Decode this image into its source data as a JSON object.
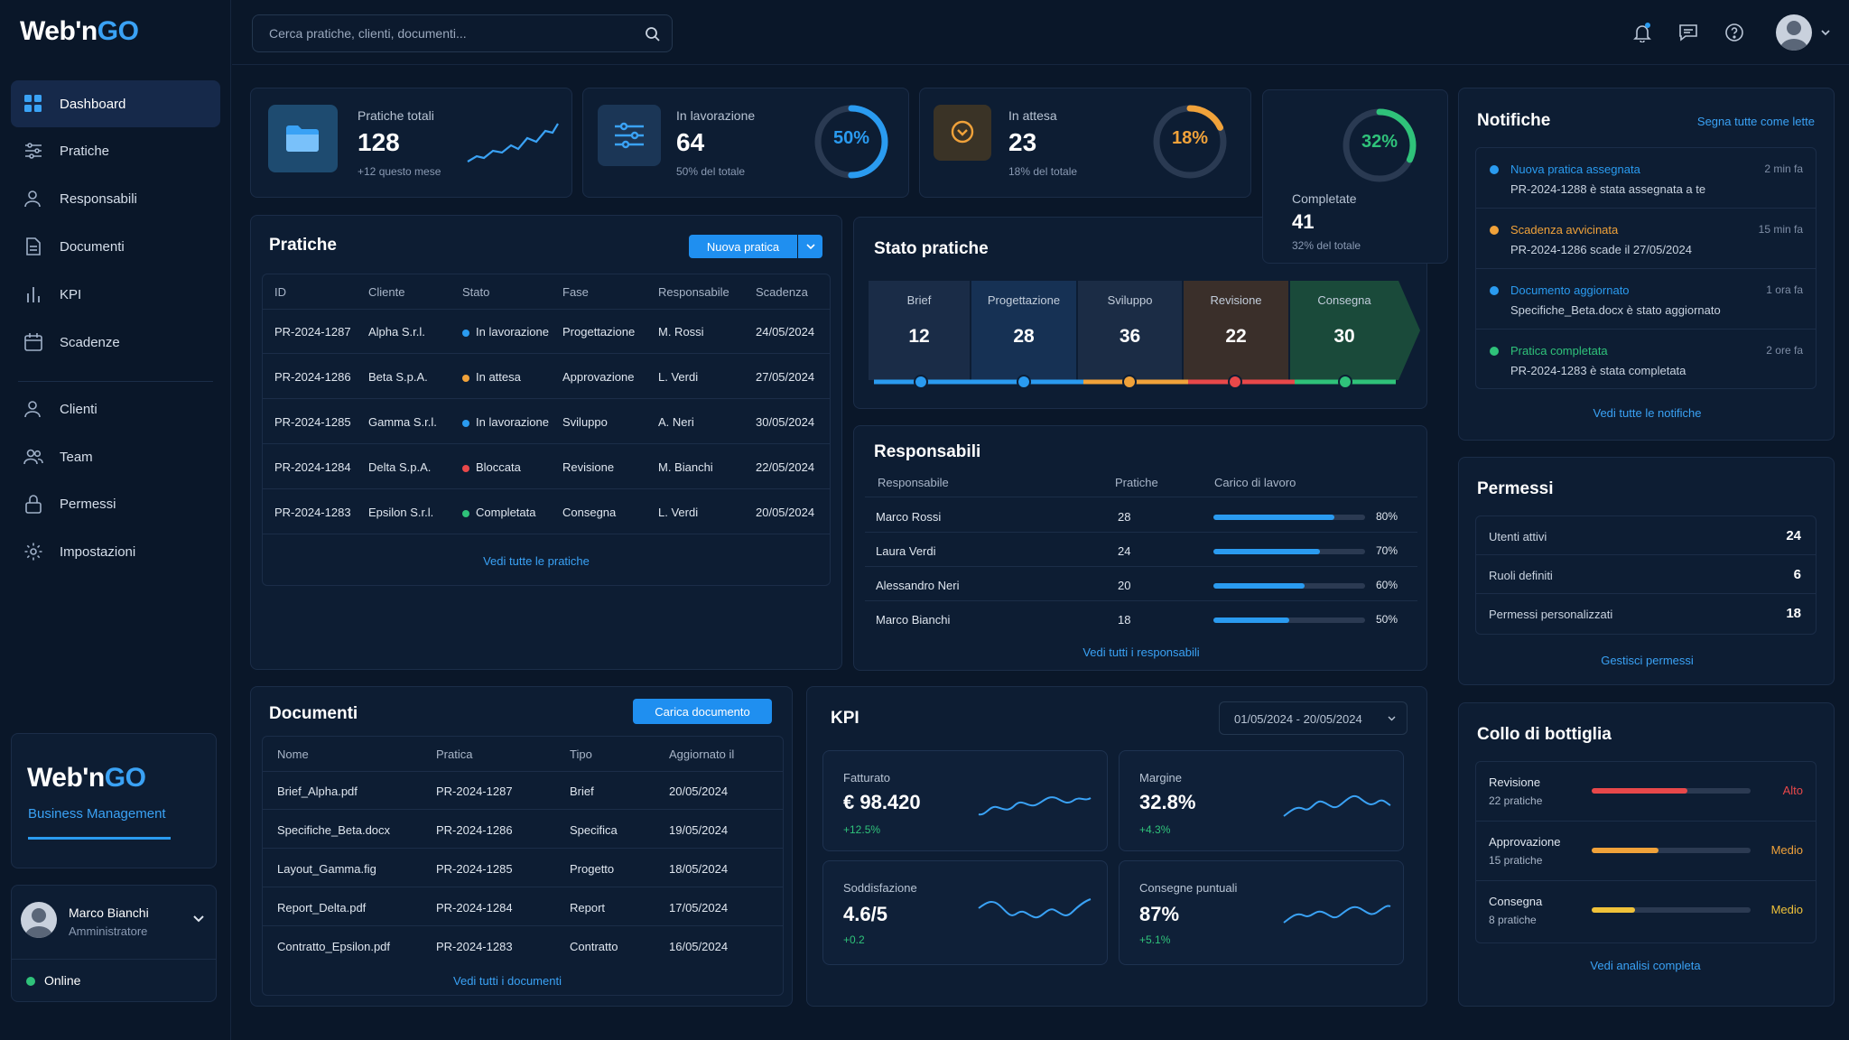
{
  "brand": {
    "logo_part1": "Web",
    "logo_sep": "'n",
    "logo_part2": "GO",
    "subtitle": "Business Management"
  },
  "search": {
    "placeholder": "Cerca pratiche, clienti, documenti..."
  },
  "sidebar": {
    "items": [
      {
        "label": "Dashboard",
        "icon": "grid-icon"
      },
      {
        "label": "Pratiche",
        "icon": "sliders-icon"
      },
      {
        "label": "Responsabili",
        "icon": "user-icon"
      },
      {
        "label": "Documenti",
        "icon": "file-icon"
      },
      {
        "label": "KPI",
        "icon": "bar-chart-icon"
      },
      {
        "label": "Scadenze",
        "icon": "calendar-icon"
      },
      {
        "label": "Clienti",
        "icon": "user-icon"
      },
      {
        "label": "Team",
        "icon": "users-icon"
      },
      {
        "label": "Permessi",
        "icon": "lock-icon"
      },
      {
        "label": "Impostazioni",
        "icon": "gear-icon"
      }
    ]
  },
  "user": {
    "name": "Marco Bianchi",
    "role": "Amministratore",
    "status": "Online"
  },
  "stats": [
    {
      "label": "Pratiche totali",
      "value": "128",
      "sub": "+12 questo mese"
    },
    {
      "label": "In lavorazione",
      "value": "64",
      "sub": "50% del totale",
      "percent": "50%",
      "fraction": 0.5,
      "color": "#2a9bf0"
    },
    {
      "label": "In attesa",
      "value": "23",
      "sub": "18% del totale",
      "percent": "18%",
      "fraction": 0.18,
      "color": "#f0a23a"
    },
    {
      "label": "Completate",
      "value": "41",
      "sub": "32% del totale",
      "percent": "32%",
      "fraction": 0.32,
      "color": "#2fc27a"
    }
  ],
  "pratiche": {
    "title": "Pratiche",
    "new_button": "Nuova pratica",
    "columns": [
      "ID",
      "Cliente",
      "Stato",
      "Fase",
      "Responsabile",
      "Scadenza"
    ],
    "rows": [
      {
        "id": "PR-2024-1287",
        "cliente": "Alpha S.r.l.",
        "stato": "In lavorazione",
        "stato_color": "#2a9bf0",
        "fase": "Progettazione",
        "resp": "M. Rossi",
        "scadenza": "24/05/2024"
      },
      {
        "id": "PR-2024-1286",
        "cliente": "Beta S.p.A.",
        "stato": "In attesa",
        "stato_color": "#f0a23a",
        "fase": "Approvazione",
        "resp": "L. Verdi",
        "scadenza": "27/05/2024"
      },
      {
        "id": "PR-2024-1285",
        "cliente": "Gamma S.r.l.",
        "stato": "In lavorazione",
        "stato_color": "#2a9bf0",
        "fase": "Sviluppo",
        "resp": "A. Neri",
        "scadenza": "30/05/2024"
      },
      {
        "id": "PR-2024-1284",
        "cliente": "Delta S.p.A.",
        "stato": "Bloccata",
        "stato_color": "#e8484a",
        "fase": "Revisione",
        "resp": "M. Bianchi",
        "scadenza": "22/05/2024"
      },
      {
        "id": "PR-2024-1283",
        "cliente": "Epsilon S.r.l.",
        "stato": "Completata",
        "stato_color": "#2fc27a",
        "fase": "Consegna",
        "resp": "L. Verdi",
        "scadenza": "20/05/2024"
      }
    ],
    "footer_link": "Vedi tutte le pratiche"
  },
  "stato": {
    "title": "Stato pratiche",
    "stages": [
      {
        "label": "Brief",
        "value": "12",
        "color": "#2a9bf0",
        "bg": "#1a2c47"
      },
      {
        "label": "Progettazione",
        "value": "28",
        "color": "#2a9bf0",
        "bg": "#163154"
      },
      {
        "label": "Sviluppo",
        "value": "36",
        "color": "#f0a23a",
        "bg": "#1b2c45"
      },
      {
        "label": "Revisione",
        "value": "22",
        "color": "#e8484a",
        "bg": "#3a2f2a"
      },
      {
        "label": "Consegna",
        "value": "30",
        "color": "#2fc27a",
        "bg": "#1a4a3a"
      }
    ]
  },
  "responsabili": {
    "title": "Responsabili",
    "columns": [
      "Responsabile",
      "Pratiche",
      "Carico di lavoro"
    ],
    "rows": [
      {
        "name": "Marco Rossi",
        "count": "28",
        "load": "80%",
        "fraction": 0.8
      },
      {
        "name": "Laura Verdi",
        "count": "24",
        "load": "70%",
        "fraction": 0.7
      },
      {
        "name": "Alessandro Neri",
        "count": "20",
        "load": "60%",
        "fraction": 0.6
      },
      {
        "name": "Marco Bianchi",
        "count": "18",
        "load": "50%",
        "fraction": 0.5
      }
    ],
    "footer_link": "Vedi tutti i responsabili"
  },
  "notifiche": {
    "title": "Notifiche",
    "mark_all": "Segna tutte come lette",
    "items": [
      {
        "title": "Nuova pratica assegnata",
        "text": "PR-2024-1288 è stata assegnata a te",
        "time": "2 min fa",
        "color": "#2a9bf0"
      },
      {
        "title": "Scadenza avvicinata",
        "text": "PR-2024-1286 scade il 27/05/2024",
        "time": "15 min fa",
        "color": "#f0a23a"
      },
      {
        "title": "Documento aggiornato",
        "text": "Specifiche_Beta.docx è stato aggiornato",
        "time": "1 ora fa",
        "color": "#2a9bf0"
      },
      {
        "title": "Pratica completata",
        "text": "PR-2024-1283 è stata completata",
        "time": "2 ore fa",
        "color": "#2fc27a"
      }
    ],
    "footer_link": "Vedi tutte le notifiche"
  },
  "permessi": {
    "title": "Permessi",
    "rows": [
      {
        "label": "Utenti attivi",
        "value": "24"
      },
      {
        "label": "Ruoli definiti",
        "value": "6"
      },
      {
        "label": "Permessi personalizzati",
        "value": "18"
      }
    ],
    "footer_link": "Gestisci permessi"
  },
  "documenti": {
    "title": "Documenti",
    "upload_button": "Carica documento",
    "columns": [
      "Nome",
      "Pratica",
      "Tipo",
      "Aggiornato il"
    ],
    "rows": [
      {
        "name": "Brief_Alpha.pdf",
        "pratica": "PR-2024-1287",
        "tipo": "Brief",
        "date": "20/05/2024"
      },
      {
        "name": "Specifiche_Beta.docx",
        "pratica": "PR-2024-1286",
        "tipo": "Specifica",
        "date": "19/05/2024"
      },
      {
        "name": "Layout_Gamma.fig",
        "pratica": "PR-2024-1285",
        "tipo": "Progetto",
        "date": "18/05/2024"
      },
      {
        "name": "Report_Delta.pdf",
        "pratica": "PR-2024-1284",
        "tipo": "Report",
        "date": "17/05/2024"
      },
      {
        "name": "Contratto_Epsilon.pdf",
        "pratica": "PR-2024-1283",
        "tipo": "Contratto",
        "date": "16/05/2024"
      }
    ],
    "footer_link": "Vedi tutti i documenti"
  },
  "kpi": {
    "title": "KPI",
    "date_range": "01/05/2024 - 20/05/2024",
    "cards": [
      {
        "label": "Fatturato",
        "value": "€ 98.420",
        "delta": "+12.5%"
      },
      {
        "label": "Margine",
        "value": "32.8%",
        "delta": "+4.3%"
      },
      {
        "label": "Soddisfazione",
        "value": "4.6/5",
        "delta": "+0.2"
      },
      {
        "label": "Consegne puntuali",
        "value": "87%",
        "delta": "+5.1%"
      }
    ]
  },
  "bottleneck": {
    "title": "Collo di bottiglia",
    "rows": [
      {
        "label": "Revisione",
        "sub": "22 pratiche",
        "level": "Alto",
        "color": "#e8484a",
        "fraction": 0.6
      },
      {
        "label": "Approvazione",
        "sub": "15 pratiche",
        "level": "Medio",
        "color": "#f0a23a",
        "fraction": 0.42
      },
      {
        "label": "Consegna",
        "sub": "8 pratiche",
        "level": "Medio",
        "color": "#f0c23a",
        "fraction": 0.27
      }
    ],
    "footer_link": "Vedi analisi completa"
  }
}
